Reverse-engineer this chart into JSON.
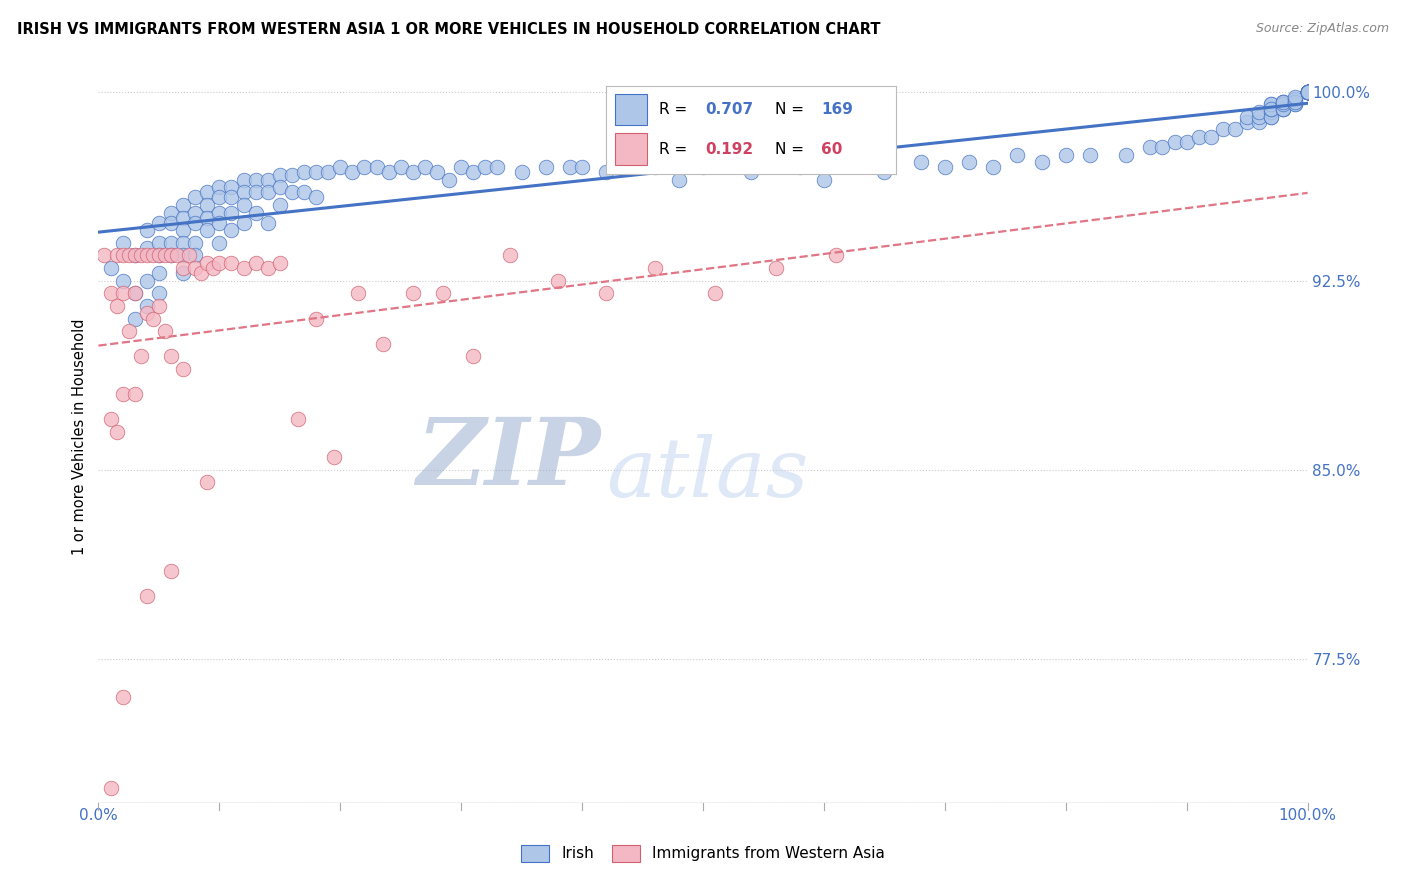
{
  "title": "IRISH VS IMMIGRANTS FROM WESTERN ASIA 1 OR MORE VEHICLES IN HOUSEHOLD CORRELATION CHART",
  "source": "Source: ZipAtlas.com",
  "ylabel": "1 or more Vehicles in Household",
  "ytick_labels": [
    "77.5%",
    "85.0%",
    "92.5%",
    "100.0%"
  ],
  "ytick_values": [
    0.775,
    0.85,
    0.925,
    1.0
  ],
  "xmin": 0.0,
  "xmax": 1.0,
  "ymin": 0.718,
  "ymax": 1.008,
  "irish_R": 0.707,
  "irish_N": 169,
  "western_asia_R": 0.192,
  "western_asia_N": 60,
  "irish_color": "#AEC6E8",
  "irish_edge_color": "#4472C4",
  "wa_color": "#F4B8C4",
  "wa_edge_color": "#D06070",
  "irish_line_color": "#4472C4",
  "wa_line_color": "#E07585",
  "legend_label_irish": "Irish",
  "legend_label_wa": "Immigrants from Western Asia",
  "watermark_zip": "ZIP",
  "watermark_atlas": "atlas",
  "watermark_zip_color": "#9BAFD0",
  "watermark_atlas_color": "#B8CCEC"
}
